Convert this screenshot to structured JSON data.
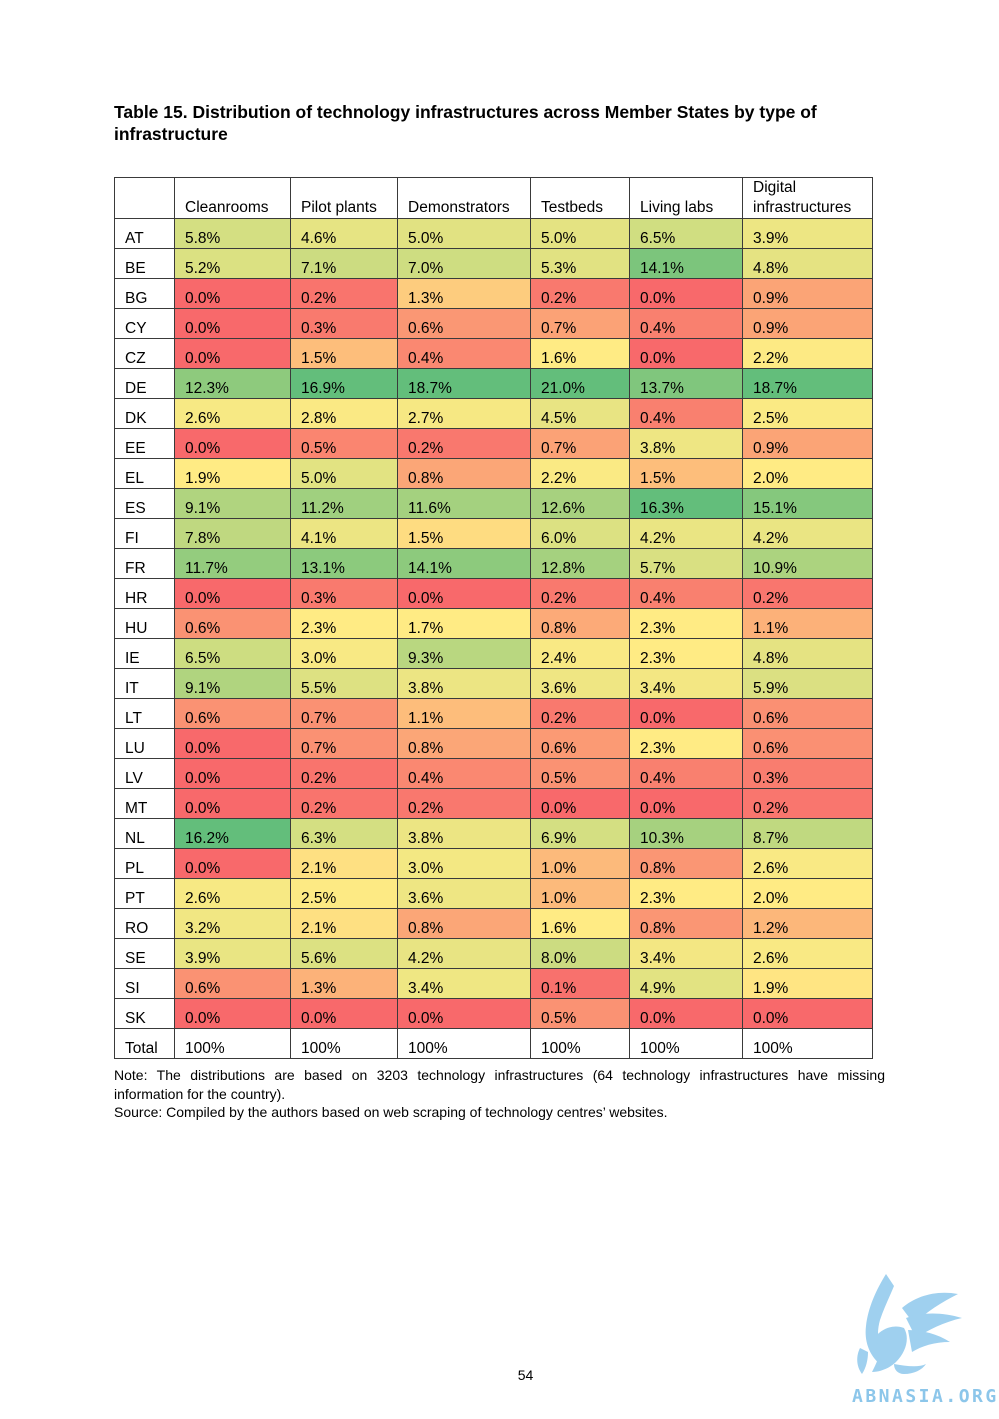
{
  "title": "Table 15. Distribution of technology infrastructures across Member States by type of infrastructure",
  "columns": [
    "",
    "Cleanrooms",
    "Pilot plants",
    "Demonstrators",
    "Testbeds",
    "Living labs",
    "Digital infrastructures"
  ],
  "rows": [
    {
      "country": "AT",
      "values": [
        "5.8%",
        "4.6%",
        "5.0%",
        "5.0%",
        "6.5%",
        "3.9%"
      ]
    },
    {
      "country": "BE",
      "values": [
        "5.2%",
        "7.1%",
        "7.0%",
        "5.3%",
        "14.1%",
        "4.8%"
      ]
    },
    {
      "country": "BG",
      "values": [
        "0.0%",
        "0.2%",
        "1.3%",
        "0.2%",
        "0.0%",
        "0.9%"
      ]
    },
    {
      "country": "CY",
      "values": [
        "0.0%",
        "0.3%",
        "0.6%",
        "0.7%",
        "0.4%",
        "0.9%"
      ]
    },
    {
      "country": "CZ",
      "values": [
        "0.0%",
        "1.5%",
        "0.4%",
        "1.6%",
        "0.0%",
        "2.2%"
      ]
    },
    {
      "country": "DE",
      "values": [
        "12.3%",
        "16.9%",
        "18.7%",
        "21.0%",
        "13.7%",
        "18.7%"
      ]
    },
    {
      "country": "DK",
      "values": [
        "2.6%",
        "2.8%",
        "2.7%",
        "4.5%",
        "0.4%",
        "2.5%"
      ]
    },
    {
      "country": "EE",
      "values": [
        "0.0%",
        "0.5%",
        "0.2%",
        "0.7%",
        "3.8%",
        "0.9%"
      ]
    },
    {
      "country": "EL",
      "values": [
        "1.9%",
        "5.0%",
        "0.8%",
        "2.2%",
        "1.5%",
        "2.0%"
      ]
    },
    {
      "country": "ES",
      "values": [
        "9.1%",
        "11.2%",
        "11.6%",
        "12.6%",
        "16.3%",
        "15.1%"
      ]
    },
    {
      "country": "FI",
      "values": [
        "7.8%",
        "4.1%",
        "1.5%",
        "6.0%",
        "4.2%",
        "4.2%"
      ]
    },
    {
      "country": "FR",
      "values": [
        "11.7%",
        "13.1%",
        "14.1%",
        "12.8%",
        "5.7%",
        "10.9%"
      ]
    },
    {
      "country": "HR",
      "values": [
        "0.0%",
        "0.3%",
        "0.0%",
        "0.2%",
        "0.4%",
        "0.2%"
      ]
    },
    {
      "country": "HU",
      "values": [
        "0.6%",
        "2.3%",
        "1.7%",
        "0.8%",
        "2.3%",
        "1.1%"
      ]
    },
    {
      "country": "IE",
      "values": [
        "6.5%",
        "3.0%",
        "9.3%",
        "2.4%",
        "2.3%",
        "4.8%"
      ]
    },
    {
      "country": "IT",
      "values": [
        "9.1%",
        "5.5%",
        "3.8%",
        "3.6%",
        "3.4%",
        "5.9%"
      ]
    },
    {
      "country": "LT",
      "values": [
        "0.6%",
        "0.7%",
        "1.1%",
        "0.2%",
        "0.0%",
        "0.6%"
      ]
    },
    {
      "country": "LU",
      "values": [
        "0.0%",
        "0.7%",
        "0.8%",
        "0.6%",
        "2.3%",
        "0.6%"
      ]
    },
    {
      "country": "LV",
      "values": [
        "0.0%",
        "0.2%",
        "0.4%",
        "0.5%",
        "0.4%",
        "0.3%"
      ]
    },
    {
      "country": "MT",
      "values": [
        "0.0%",
        "0.2%",
        "0.2%",
        "0.0%",
        "0.0%",
        "0.2%"
      ]
    },
    {
      "country": "NL",
      "values": [
        "16.2%",
        "6.3%",
        "3.8%",
        "6.9%",
        "10.3%",
        "8.7%"
      ]
    },
    {
      "country": "PL",
      "values": [
        "0.0%",
        "2.1%",
        "3.0%",
        "1.0%",
        "0.8%",
        "2.6%"
      ]
    },
    {
      "country": "PT",
      "values": [
        "2.6%",
        "2.5%",
        "3.6%",
        "1.0%",
        "2.3%",
        "2.0%"
      ]
    },
    {
      "country": "RO",
      "values": [
        "3.2%",
        "2.1%",
        "0.8%",
        "1.6%",
        "0.8%",
        "1.2%"
      ]
    },
    {
      "country": "SE",
      "values": [
        "3.9%",
        "5.6%",
        "4.2%",
        "8.0%",
        "3.4%",
        "2.6%"
      ]
    },
    {
      "country": "SI",
      "values": [
        "0.6%",
        "1.3%",
        "3.4%",
        "0.1%",
        "4.9%",
        "1.9%"
      ]
    },
    {
      "country": "SK",
      "values": [
        "0.0%",
        "0.0%",
        "0.0%",
        "0.5%",
        "0.0%",
        "0.0%"
      ]
    }
  ],
  "total_row": {
    "label": "Total",
    "values": [
      "100%",
      "100%",
      "100%",
      "100%",
      "100%",
      "100%"
    ]
  },
  "colors": {
    "low": "#f8696b",
    "mid": "#ffeb84",
    "high": "#63be7b"
  },
  "note": "Note: The distributions are based on 3203 technology infrastructures (64 technology infrastructures have missing information for the country).",
  "source": "Source: Compiled by the authors based on web scraping of technology centres’ websites.",
  "page_number": "54",
  "watermark": {
    "text": "ABNASIA.ORG",
    "icon": "griffin-logo-icon"
  }
}
